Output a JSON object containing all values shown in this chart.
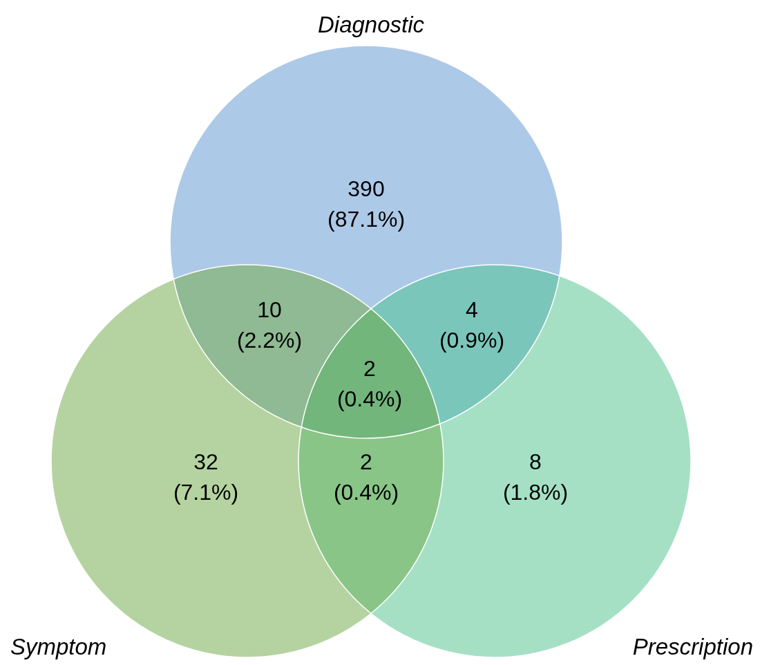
{
  "chart_data": {
    "type": "other",
    "categories": [
      null,
      null,
      null,
      null,
      null,
      null,
      null
    ],
    "values": [
      390,
      10,
      4,
      2,
      32,
      2,
      8
    ],
    "colors": [
      "#adc9e8",
      "#8fba93",
      "#7bc6bb",
      "#72b67c",
      "#b5d3a0",
      "#88c587",
      "#a5e0c5"
    ],
    "value_labels": [
      "390\n(87.1%)",
      "10\n(2.2%)",
      "4\n(0.9%)",
      "2\n(0.4%)",
      "32\n(7.1%)",
      "2\n(0.4%)",
      "8\n(1.8%)"
    ],
    "annotations": [
      "Diagnostic",
      "Symptom",
      "Prescription"
    ]
  }
}
